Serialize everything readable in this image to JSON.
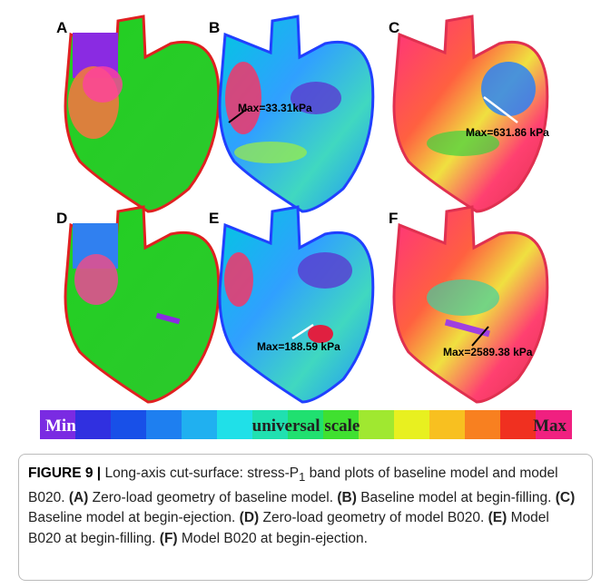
{
  "panels": [
    {
      "label": "A"
    },
    {
      "label": "B",
      "annotation": "Max=33.31kPa"
    },
    {
      "label": "C",
      "annotation": "Max=631.86 kPa"
    },
    {
      "label": "D"
    },
    {
      "label": "E",
      "annotation": "Max=188.59 kPa"
    },
    {
      "label": "F",
      "annotation": "Max=2589.38 kPa"
    }
  ],
  "scale": {
    "min": "Min",
    "title": "universal scale",
    "max": "Max"
  },
  "caption": {
    "label": "FIGURE 9 |",
    "text": "Long-axis cut-surface: stress-P",
    "sub": "1",
    "text_end": "band plots of baseline model and model B020.",
    "items": [
      {
        "letter": "(A)",
        "text": "Zero-load geometry of baseline model."
      },
      {
        "letter": "(B)",
        "text": "Baseline model at begin-filling."
      },
      {
        "letter": "(C)",
        "text": "Baseline model at begin-ejection."
      },
      {
        "letter": "(D)",
        "text": "Zero-load geometry of model B020."
      },
      {
        "letter": "(E)",
        "text": "Model B020 at begin-filling."
      },
      {
        "letter": "(F)",
        "text": "Model B020 at begin-ejection."
      }
    ]
  }
}
